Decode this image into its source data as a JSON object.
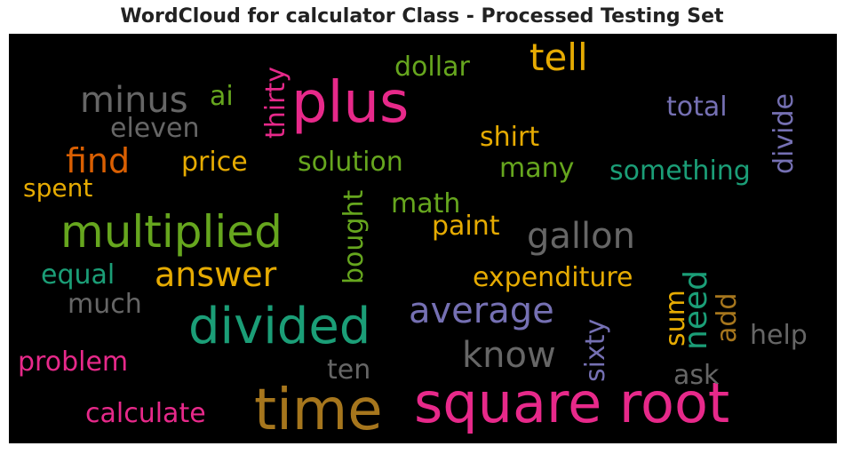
{
  "title": "WordCloud for calculator Class - Processed Testing Set",
  "colors": {
    "pink": "#e7298a",
    "green": "#66a61e",
    "gray": "#666666",
    "gold": "#e6ab02",
    "teal": "#1b9e77",
    "purple": "#7570b3",
    "orange": "#d95f02",
    "brown": "#a6761d"
  },
  "words": [
    {
      "text": "plus",
      "color": "pink"
    },
    {
      "text": "square root",
      "color": "pink"
    },
    {
      "text": "time",
      "color": "brown"
    },
    {
      "text": "divided",
      "color": "teal"
    },
    {
      "text": "multiplied",
      "color": "green"
    },
    {
      "text": "minus",
      "color": "gray"
    },
    {
      "text": "tell",
      "color": "gold"
    },
    {
      "text": "gallon",
      "color": "gray"
    },
    {
      "text": "answer",
      "color": "gold"
    },
    {
      "text": "average",
      "color": "purple"
    },
    {
      "text": "know",
      "color": "gray"
    },
    {
      "text": "find",
      "color": "orange"
    },
    {
      "text": "thirty",
      "color": "pink"
    },
    {
      "text": "dollar",
      "color": "green"
    },
    {
      "text": "ai",
      "color": "green"
    },
    {
      "text": "total",
      "color": "purple"
    },
    {
      "text": "divide",
      "color": "purple"
    },
    {
      "text": "eleven",
      "color": "gray"
    },
    {
      "text": "shirt",
      "color": "gold"
    },
    {
      "text": "price",
      "color": "gold"
    },
    {
      "text": "solution",
      "color": "green"
    },
    {
      "text": "many",
      "color": "green"
    },
    {
      "text": "something",
      "color": "teal"
    },
    {
      "text": "spent",
      "color": "gold"
    },
    {
      "text": "math",
      "color": "green"
    },
    {
      "text": "bought",
      "color": "green"
    },
    {
      "text": "paint",
      "color": "gold"
    },
    {
      "text": "equal",
      "color": "teal"
    },
    {
      "text": "expenditure",
      "color": "gold"
    },
    {
      "text": "need",
      "color": "teal"
    },
    {
      "text": "much",
      "color": "gray"
    },
    {
      "text": "sum",
      "color": "gold"
    },
    {
      "text": "add",
      "color": "brown"
    },
    {
      "text": "sixty",
      "color": "purple"
    },
    {
      "text": "help",
      "color": "gray"
    },
    {
      "text": "problem",
      "color": "pink"
    },
    {
      "text": "ten",
      "color": "gray"
    },
    {
      "text": "ask",
      "color": "gray"
    },
    {
      "text": "calculate",
      "color": "pink"
    }
  ]
}
